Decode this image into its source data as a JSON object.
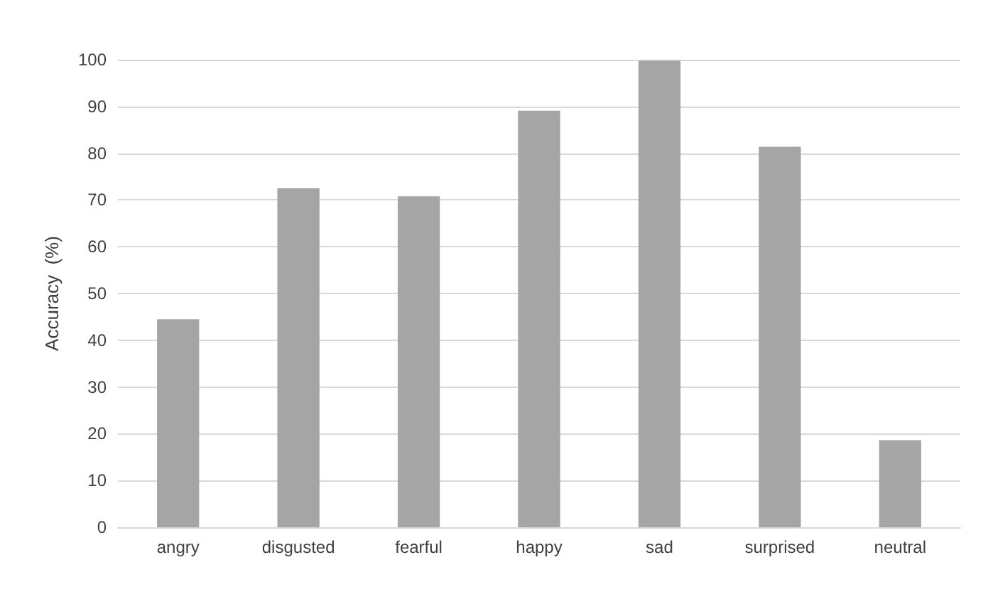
{
  "chart_data": {
    "type": "bar",
    "ylabel": "Accuracy  (%)",
    "categories": [
      "angry",
      "disgusted",
      "fearful",
      "happy",
      "sad",
      "surprised",
      "neutral"
    ],
    "values": [
      44.5,
      72.5,
      70.8,
      89.1,
      99.8,
      81.4,
      18.6
    ],
    "color": "#a5a5a5",
    "ylim": [
      0,
      100
    ],
    "yticks": [
      0,
      10,
      20,
      30,
      40,
      50,
      60,
      70,
      80,
      90,
      100
    ],
    "grid": "y"
  }
}
